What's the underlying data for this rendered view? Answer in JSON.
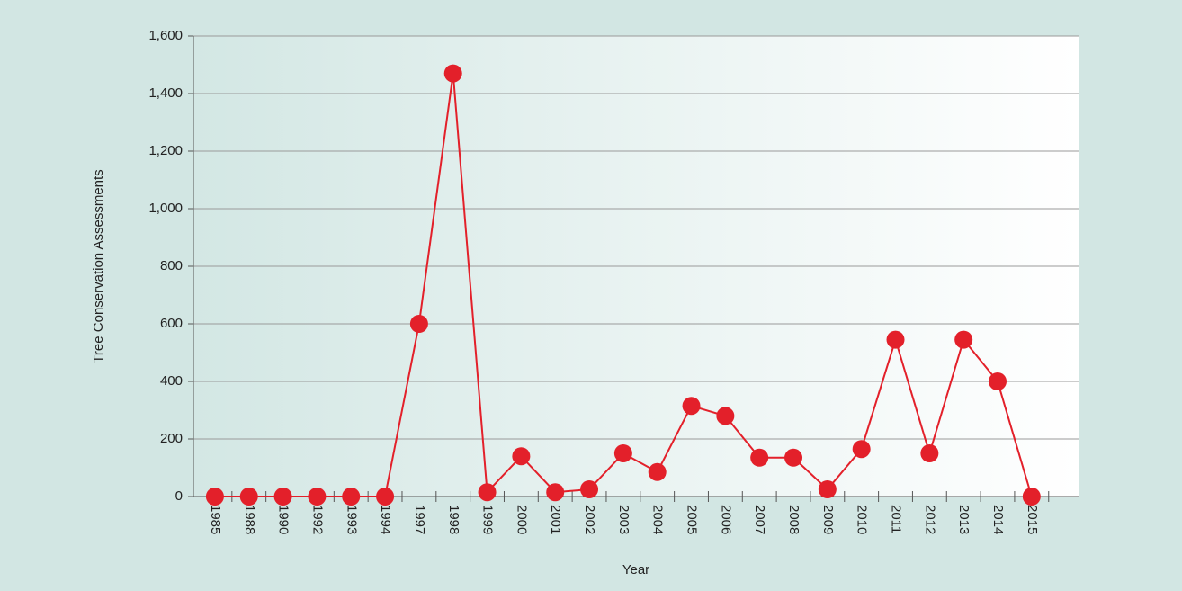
{
  "chart_data": {
    "type": "line",
    "x_label": "Year",
    "y_label": "Tree Conservation Assessments",
    "categories": [
      "1985",
      "1988",
      "1990",
      "1992",
      "1993",
      "1994",
      "1997",
      "1998",
      "1999",
      "2000",
      "2001",
      "2002",
      "2003",
      "2004",
      "2005",
      "2006",
      "2007",
      "2008",
      "2009",
      "2010",
      "2011",
      "2012",
      "2013",
      "2014",
      "2015"
    ],
    "series": [
      {
        "name": "Tree Conservation Assessments",
        "color": "#e3202a",
        "values": [
          0,
          0,
          0,
          0,
          0,
          0,
          600,
          1470,
          15,
          140,
          15,
          25,
          150,
          85,
          315,
          280,
          135,
          135,
          25,
          165,
          545,
          150,
          545,
          400,
          0
        ]
      }
    ],
    "ylim": [
      0,
      1600
    ],
    "yticks": [
      0,
      200,
      400,
      600,
      800,
      {
        "value": 1000,
        "label": "1,000"
      },
      {
        "value": 1200,
        "label": "1,200"
      },
      {
        "value": 1400,
        "label": "1,400"
      },
      {
        "value": 1600,
        "label": "1,600"
      }
    ],
    "grid": true
  }
}
